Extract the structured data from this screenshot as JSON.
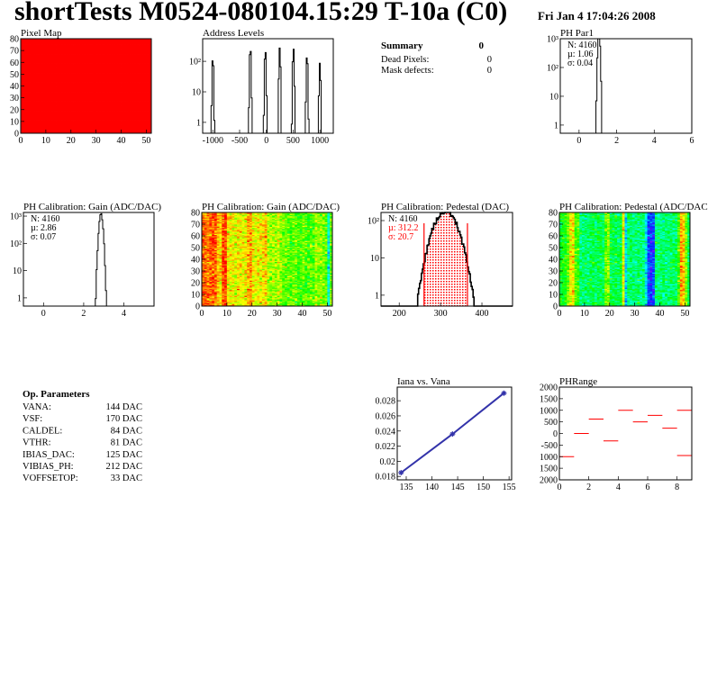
{
  "header": {
    "title": "shortTests M0524-080104.15:29 T-10a (C0)",
    "date": "Fri Jan  4 17:04:26 2008"
  },
  "summary": {
    "title": "Summary",
    "value": "0",
    "rows": [
      {
        "label": "Dead Pixels:",
        "value": "0"
      },
      {
        "label": "Mask defects:",
        "value": "0"
      }
    ]
  },
  "op_parameters": {
    "title": "Op. Parameters",
    "rows": [
      {
        "label": "VANA:",
        "value": "144 DAC"
      },
      {
        "label": "VSF:",
        "value": "170 DAC"
      },
      {
        "label": "CALDEL:",
        "value": "84 DAC"
      },
      {
        "label": "VTHR:",
        "value": "81 DAC"
      },
      {
        "label": "IBIAS_DAC:",
        "value": "125 DAC"
      },
      {
        "label": "VIBIAS_PH:",
        "value": "212 DAC"
      },
      {
        "label": "VOFFSETOP:",
        "value": "33 DAC"
      }
    ]
  },
  "colors": {
    "hist_line": "#000000",
    "fit_red": "#ff0000",
    "graph_blue": "#3333aa",
    "pixel_map_fill": "#ff0000"
  },
  "chart_data": [
    {
      "id": "pixelmap",
      "type": "heatmap",
      "title": "Pixel Map",
      "xlim": [
        0,
        52
      ],
      "ylim": [
        0,
        80
      ],
      "zlim": [
        0,
        10
      ],
      "uniform_value": 10,
      "xticks": [
        "0",
        "10",
        "20",
        "30",
        "40",
        "50"
      ],
      "yticks": [
        "0",
        "10",
        "20",
        "30",
        "40",
        "50",
        "60",
        "70",
        "80"
      ],
      "zticks": [
        "0",
        "1",
        "2",
        "3",
        "4",
        "5",
        "6",
        "7",
        "8",
        "9",
        "10"
      ]
    },
    {
      "id": "address",
      "type": "bar",
      "title": "Address Levels",
      "xlim": [
        -1190,
        1250
      ],
      "ylim": [
        0.44,
        550
      ],
      "log_y": true,
      "peaks": [
        {
          "x": -1000,
          "height": 140
        },
        {
          "x": -300,
          "height": 300
        },
        {
          "x": -20,
          "height": 250
        },
        {
          "x": 250,
          "height": 280
        },
        {
          "x": 505,
          "height": 280
        },
        {
          "x": 760,
          "height": 170
        },
        {
          "x": 1000,
          "height": 90
        }
      ],
      "xticks": [
        "-1000",
        "-500",
        "0",
        "500",
        "1000"
      ],
      "yticks": [
        "1",
        "10",
        "10²"
      ]
    },
    {
      "id": "phpar1",
      "type": "bar",
      "title": "PH Par1",
      "xlim": [
        -1,
        6
      ],
      "ylim": [
        0.52,
        1000
      ],
      "log_y": true,
      "stats": {
        "N": "N: 4160",
        "mean": "µ: 1.06",
        "sigma": "σ: 0.04"
      },
      "mean": 1.06,
      "sigma": 0.04,
      "entries": 4160,
      "xticks": [
        "0",
        "2",
        "4",
        "6"
      ],
      "yticks": [
        "1",
        "10",
        "10²",
        "10³"
      ]
    },
    {
      "id": "gainhist",
      "type": "bar",
      "title": "PH Calibration: Gain (ADC/DAC)",
      "xlim": [
        -1,
        5.5
      ],
      "ylim": [
        0.5,
        1360
      ],
      "log_y": true,
      "stats": {
        "N": "N: 4160",
        "mean": "µ: 2.86",
        "sigma": "σ: 0.07"
      },
      "mean": 2.86,
      "sigma": 0.07,
      "entries": 4160,
      "xticks": [
        "0",
        "2",
        "4"
      ],
      "yticks": [
        "1",
        "10",
        "10²",
        "10³"
      ]
    },
    {
      "id": "gainmap",
      "type": "heatmap",
      "title": "PH Calibration: Gain (ADC/DAC)",
      "xlim": [
        0,
        52
      ],
      "ylim": [
        0,
        80
      ],
      "zlim": [
        2.55,
        3.0
      ],
      "column_means": [
        2.96,
        2.97,
        2.95,
        2.96,
        2.97,
        2.96,
        2.92,
        2.91,
        2.97,
        2.98,
        2.91,
        2.9,
        2.9,
        2.89,
        2.91,
        2.9,
        2.89,
        2.9,
        2.93,
        2.94,
        2.9,
        2.89,
        2.9,
        2.9,
        2.91,
        2.92,
        2.87,
        2.86,
        2.87,
        2.86,
        2.88,
        2.86,
        2.85,
        2.84,
        2.84,
        2.83,
        2.84,
        2.84,
        2.82,
        2.83,
        2.84,
        2.83,
        2.82,
        2.84,
        2.83,
        2.86,
        2.85,
        2.86,
        2.85,
        2.84,
        2.72,
        2.84
      ],
      "xticks": [
        "0",
        "10",
        "20",
        "30",
        "40",
        "50"
      ],
      "yticks": [
        "0",
        "10",
        "20",
        "30",
        "40",
        "50",
        "60",
        "70",
        "80"
      ],
      "zticks": [
        "2.6",
        "2.65",
        "2.7",
        "2.75",
        "2.8",
        "2.85",
        "2.9",
        "2.95",
        "3"
      ]
    },
    {
      "id": "pedhist",
      "type": "bar",
      "title": "PH Calibration: Pedestal (DAC)",
      "xlim": [
        156,
        474
      ],
      "ylim": [
        0.51,
        165
      ],
      "log_y": true,
      "stats": {
        "N": "N: 4160",
        "mean": "µ: 312.2",
        "sigma": "σ: 20.7"
      },
      "mean": 312.2,
      "sigma": 20.7,
      "entries": 4160,
      "fit_range": [
        260,
        365
      ],
      "xticks": [
        "200",
        "300",
        "400"
      ],
      "yticks": [
        "1",
        "10",
        "10²"
      ]
    },
    {
      "id": "pedmap",
      "type": "heatmap",
      "title": "PH Calibration: Pedestal (ADC/DAC",
      "xlim": [
        0,
        52
      ],
      "ylim": [
        0,
        80
      ],
      "zlim": [
        230,
        390
      ],
      "column_means": [
        318,
        320,
        322,
        335,
        355,
        358,
        330,
        328,
        305,
        304,
        306,
        305,
        310,
        312,
        309,
        311,
        310,
        308,
        335,
        338,
        310,
        309,
        311,
        310,
        312,
        355,
        280,
        305,
        306,
        304,
        305,
        307,
        303,
        305,
        285,
        258,
        252,
        256,
        305,
        304,
        306,
        305,
        303,
        305,
        307,
        304,
        306,
        330,
        366,
        362,
        335,
        310
      ],
      "xticks": [
        "0",
        "10",
        "20",
        "30",
        "40",
        "50"
      ],
      "yticks": [
        "0",
        "10",
        "20",
        "30",
        "40",
        "50",
        "60",
        "70",
        "80"
      ],
      "zticks": [
        "240",
        "260",
        "280",
        "300",
        "320",
        "340",
        "360",
        "380"
      ]
    },
    {
      "id": "iana",
      "type": "line",
      "title": "Iana vs. Vana",
      "xlim": [
        133.25,
        155.5
      ],
      "ylim": [
        0.01755,
        0.0298
      ],
      "x": [
        134,
        144,
        154
      ],
      "y": [
        0.0185,
        0.0236,
        0.029
      ],
      "xticks": [
        "135",
        "140",
        "145",
        "150",
        "155"
      ],
      "yticks": [
        "0.018",
        "0.02",
        "0.022",
        "0.024",
        "0.026",
        "0.028"
      ]
    },
    {
      "id": "phrange",
      "type": "heatmap",
      "title": "PHRange",
      "xlim": [
        0,
        9
      ],
      "ylim": [
        -2000,
        2000
      ],
      "zlim": [
        0,
        1
      ],
      "segments": [
        {
          "x": [
            0,
            1
          ],
          "y": -1000
        },
        {
          "x": [
            1,
            2
          ],
          "y": 0
        },
        {
          "x": [
            2,
            3
          ],
          "y": 620
        },
        {
          "x": [
            3,
            4
          ],
          "y": -320
        },
        {
          "x": [
            4,
            5
          ],
          "y": 1000
        },
        {
          "x": [
            5,
            6
          ],
          "y": 500
        },
        {
          "x": [
            6,
            7
          ],
          "y": 780
        },
        {
          "x": [
            7,
            8
          ],
          "y": 230
        },
        {
          "x": [
            8,
            9
          ],
          "y": 1000
        },
        {
          "x": [
            8,
            9
          ],
          "y": -950
        }
      ],
      "xticks": [
        "0",
        "2",
        "4",
        "6",
        "8"
      ],
      "yticks": [
        "2000",
        "1500",
        "1000",
        "500",
        "0",
        "-500",
        "1000",
        "1500",
        "2000"
      ],
      "zticks": [
        "0",
        "0.1",
        "0.2",
        "0.3",
        "0.4",
        "0.5",
        "0.6",
        "0.7",
        "0.8",
        "0.9",
        "1"
      ]
    }
  ]
}
